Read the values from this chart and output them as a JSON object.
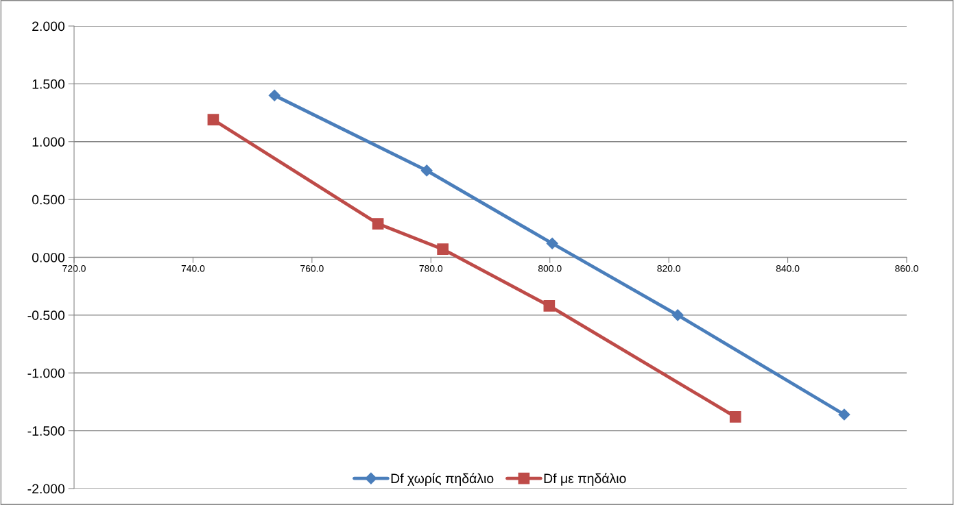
{
  "chart_data": {
    "type": "line",
    "grid": "y",
    "legend": "bottom",
    "line_style": "solid",
    "xlim": [
      720,
      860
    ],
    "ylim": [
      -2,
      2
    ],
    "xticks": [
      {
        "value": 720,
        "label": "720.0"
      },
      {
        "value": 740,
        "label": "740.0"
      },
      {
        "value": 760,
        "label": "760.0"
      },
      {
        "value": 780,
        "label": "780.0"
      },
      {
        "value": 800,
        "label": "800.0"
      },
      {
        "value": 820,
        "label": "820.0"
      },
      {
        "value": 840,
        "label": "840.0"
      },
      {
        "value": 860,
        "label": "860.0"
      }
    ],
    "yticks": [
      {
        "value": -2,
        "label": "-2.000"
      },
      {
        "value": -1.5,
        "label": "-1.500"
      },
      {
        "value": -1,
        "label": "-1.000"
      },
      {
        "value": -0.5,
        "label": "-0.500"
      },
      {
        "value": 0,
        "label": "0.000"
      },
      {
        "value": 0.5,
        "label": "0.500"
      },
      {
        "value": 1,
        "label": "1.000"
      },
      {
        "value": 1.5,
        "label": "1.500"
      },
      {
        "value": 2,
        "label": "2.000"
      }
    ],
    "series": [
      {
        "name": "Df χωρίς πηδάλιο",
        "color": "#4a7ebb",
        "marker": "diamond",
        "x": [
          753.7,
          779.3,
          800.4,
          821.5,
          849.5
        ],
        "values": [
          1.4,
          0.75,
          0.12,
          -0.5,
          -1.36
        ]
      },
      {
        "name": "Df με πηδάλιο",
        "color": "#be4b48",
        "marker": "square",
        "x": [
          743.4,
          771.1,
          782.0,
          799.9,
          831.2
        ],
        "values": [
          1.19,
          0.29,
          0.07,
          -0.42,
          -1.38
        ]
      }
    ]
  }
}
